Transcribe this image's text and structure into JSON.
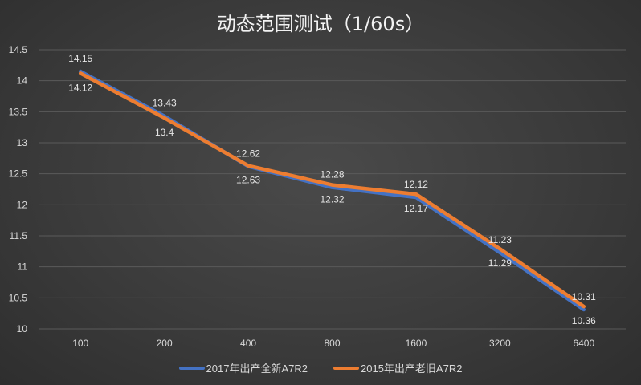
{
  "chart_data": {
    "type": "line",
    "title": "动态范围测试（1/60s）",
    "xlabel": "",
    "ylabel": "",
    "categories": [
      "100",
      "200",
      "400",
      "800",
      "1600",
      "3200",
      "6400"
    ],
    "ylim": [
      10,
      14.5
    ],
    "yticks": [
      "10",
      "10.5",
      "11",
      "11.5",
      "12",
      "12.5",
      "13",
      "13.5",
      "14",
      "14.5"
    ],
    "grid": true,
    "legend_position": "bottom",
    "series": [
      {
        "name": "2017年出产全新A7R2",
        "color": "#4472c4",
        "values": [
          14.15,
          13.43,
          12.62,
          12.28,
          12.12,
          11.23,
          10.31
        ],
        "label_position": "above"
      },
      {
        "name": "2015年出产老旧A7R2",
        "color": "#ed7d31",
        "values": [
          14.12,
          13.4,
          12.63,
          12.32,
          12.17,
          11.29,
          10.36
        ],
        "label_position": "below"
      }
    ]
  }
}
